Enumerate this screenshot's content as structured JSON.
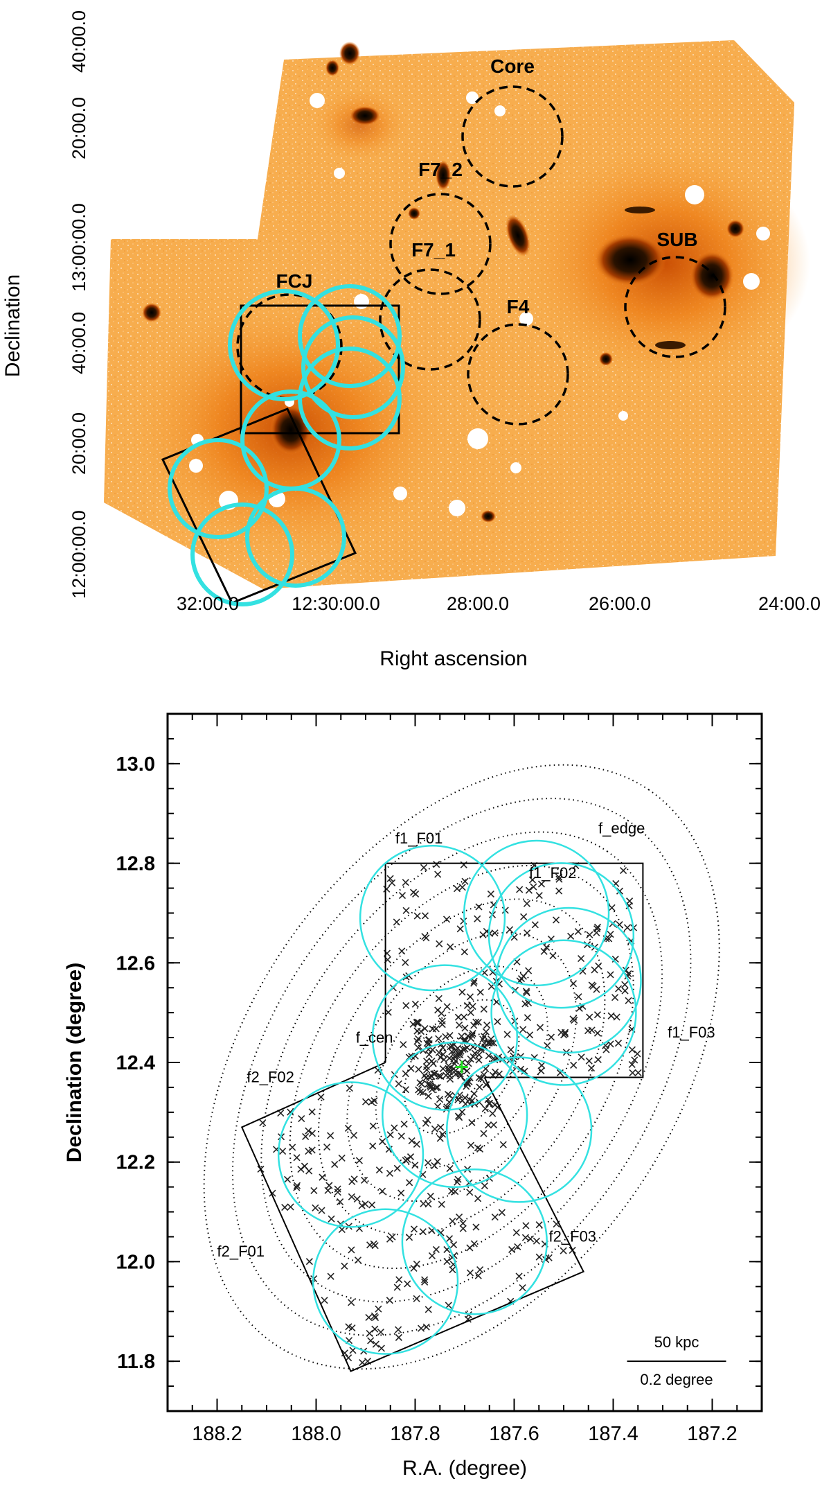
{
  "top_panel": {
    "chart_data": {
      "type": "scatter",
      "xlabel": "Right ascension",
      "ylabel": "Declination",
      "x_tick_labels": [
        "32:00.0",
        "12:30:00.0",
        "28:00.0",
        "26:00.0",
        "24:00.0"
      ],
      "y_tick_labels": [
        "12:00:00.0",
        "20:00.0",
        "40:00.0",
        "13:00:00.0",
        "20:00.0",
        "40:00.0"
      ],
      "field_labels": [
        "Core",
        "F7_2",
        "F7_1",
        "FCJ",
        "F4",
        "SUB"
      ],
      "colors": {
        "background_image": "#f7a23a",
        "field_circles": "#000000",
        "cyan_fields": "#33e1e1"
      }
    }
  },
  "bottom_panel": {
    "chart_data": {
      "type": "scatter",
      "xlabel": "R.A. (degree)",
      "ylabel": "Declination (degree)",
      "xlim": [
        188.3,
        187.1
      ],
      "ylim": [
        11.7,
        13.1
      ],
      "x_tick_labels": [
        "188.2",
        "188.0",
        "187.8",
        "187.6",
        "187.4",
        "187.2"
      ],
      "y_tick_labels": [
        "11.8",
        "12.0",
        "12.2",
        "12.4",
        "12.6",
        "12.8",
        "13.0"
      ],
      "center": {
        "ra": 187.706,
        "dec": 12.391
      },
      "field_labels": [
        "f1_F01",
        "f1_F02",
        "f1_F03",
        "f_cen",
        "f2_F02",
        "f2_F01",
        "f2_F03",
        "f_edge"
      ],
      "scale_bar": {
        "top_label": "50 kpc",
        "bottom_label": "0.2 degree"
      },
      "colors": {
        "field_circles": "#33e1e1",
        "center_marker": "#22dd22",
        "points": "#222222"
      }
    }
  }
}
